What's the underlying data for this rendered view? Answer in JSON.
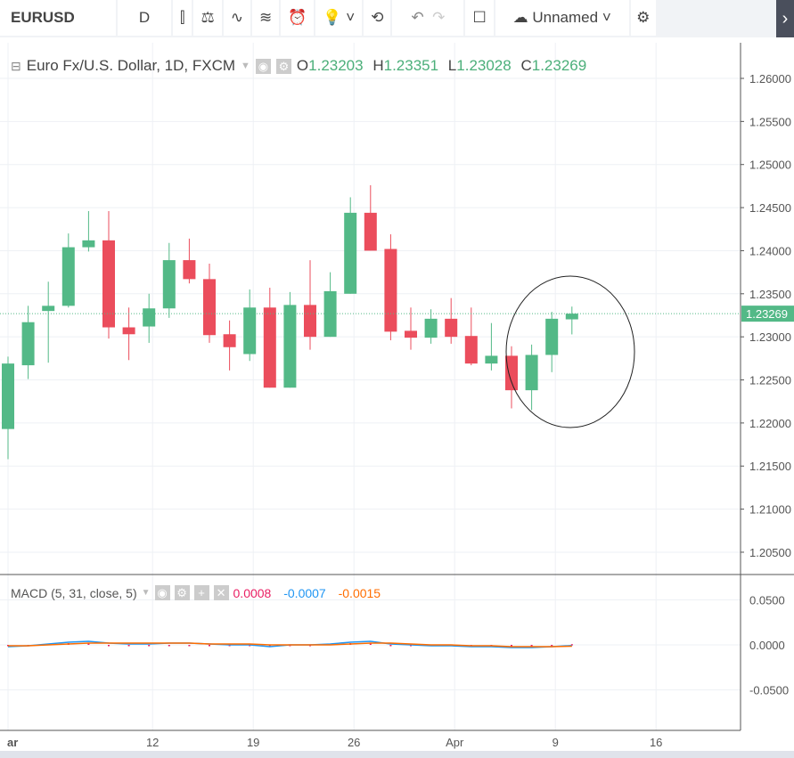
{
  "toolbar": {
    "symbol": "EURUSD",
    "interval": "D",
    "layout_name": "Unnamed",
    "icons": [
      "candles-icon",
      "compare-icon",
      "indicators-icon",
      "templates-icon",
      "alert-icon",
      "ideas-icon",
      "replay-icon",
      "undo-icon",
      "redo-icon",
      "fullscreen-icon",
      "cloud-icon",
      "gear-icon"
    ]
  },
  "legend": {
    "title": "Euro Fx/U.S. Dollar, 1D, FXCM",
    "o_label": "O",
    "o": "1.23203",
    "h_label": "H",
    "h": "1.23351",
    "l_label": "L",
    "l": "1.23028",
    "c_label": "C",
    "c": "1.23269"
  },
  "macd_legend": {
    "title": "MACD (5, 31, close, 5)",
    "hist": "0.0008",
    "macd": "-0.0007",
    "signal": "-0.0015"
  },
  "colors": {
    "up": "#53b987",
    "down": "#eb4d5c",
    "macd": "#2196f3",
    "signal": "#ff6d00",
    "hist": "#e91e63"
  },
  "chart_data": {
    "type": "candlestick",
    "price_axis": {
      "ticks": [
        "1.26000",
        "1.25500",
        "1.25000",
        "1.24500",
        "1.24000",
        "1.23500",
        "1.23000",
        "1.22500",
        "1.22000",
        "1.21500",
        "1.21000",
        "1.20500"
      ],
      "range": [
        1.2045,
        1.2615
      ],
      "last": "1.23269"
    },
    "time_axis": {
      "labels": [
        {
          "t": "ar",
          "i": 0
        },
        {
          "t": "12",
          "i": 7
        },
        {
          "t": "19",
          "i": 12
        },
        {
          "t": "26",
          "i": 17
        },
        {
          "t": "Apr",
          "i": 22
        },
        {
          "t": "9",
          "i": 27
        },
        {
          "t": "16",
          "i": 32
        }
      ]
    },
    "ohlc": [
      [
        1.2193,
        1.2277,
        1.2158,
        1.2269
      ],
      [
        1.2267,
        1.2336,
        1.2251,
        1.2317
      ],
      [
        1.233,
        1.2364,
        1.227,
        1.2336
      ],
      [
        1.2336,
        1.242,
        1.2334,
        1.2404
      ],
      [
        1.2404,
        1.2446,
        1.2399,
        1.2412
      ],
      [
        1.2412,
        1.2446,
        1.2298,
        1.2311
      ],
      [
        1.2311,
        1.2334,
        1.2273,
        1.2303
      ],
      [
        1.2312,
        1.235,
        1.2293,
        1.2333
      ],
      [
        1.2333,
        1.2409,
        1.2322,
        1.2389
      ],
      [
        1.2389,
        1.2414,
        1.2362,
        1.2367
      ],
      [
        1.2367,
        1.2385,
        1.2293,
        1.2302
      ],
      [
        1.2303,
        1.2319,
        1.2261,
        1.2288
      ],
      [
        1.228,
        1.2355,
        1.2272,
        1.2334
      ],
      [
        1.2334,
        1.2357,
        1.2241,
        1.2241
      ],
      [
        1.2241,
        1.2352,
        1.2241,
        1.2337
      ],
      [
        1.2337,
        1.2389,
        1.2285,
        1.23
      ],
      [
        1.23,
        1.2375,
        1.23,
        1.2353
      ],
      [
        1.235,
        1.2462,
        1.235,
        1.2444
      ],
      [
        1.2444,
        1.2476,
        1.24,
        1.24
      ],
      [
        1.2402,
        1.2419,
        1.2296,
        1.2306
      ],
      [
        1.2307,
        1.2334,
        1.2285,
        1.2299
      ],
      [
        1.2299,
        1.2332,
        1.2292,
        1.2321
      ],
      [
        1.2321,
        1.2345,
        1.2292,
        1.23
      ],
      [
        1.2301,
        1.2334,
        1.2267,
        1.2269
      ],
      [
        1.2269,
        1.2316,
        1.2261,
        1.2278
      ],
      [
        1.2278,
        1.2289,
        1.2217,
        1.2238
      ],
      [
        1.2238,
        1.2291,
        1.2215,
        1.2279
      ],
      [
        1.2279,
        1.2329,
        1.2259,
        1.2321
      ],
      [
        1.23203,
        1.23351,
        1.23028,
        1.23269
      ]
    ],
    "macd_axis": {
      "ticks": [
        "0.0500",
        "0.0000",
        "-0.0500"
      ],
      "range": [
        -0.098,
        0.078
      ]
    },
    "macd": [
      -0.002,
      -0.001,
      0.001,
      0.003,
      0.004,
      0.002,
      0.001,
      0.001,
      0.002,
      0.002,
      0.001,
      0.0,
      0.0,
      -0.002,
      0.0,
      0.0,
      0.001,
      0.003,
      0.004,
      0.001,
      0.0,
      -0.001,
      -0.001,
      -0.002,
      -0.002,
      -0.003,
      -0.003,
      -0.002,
      -0.0007
    ],
    "signal": [
      -0.001,
      -0.001,
      0.0,
      0.001,
      0.002,
      0.002,
      0.002,
      0.002,
      0.002,
      0.002,
      0.001,
      0.001,
      0.001,
      0.0,
      0.0,
      0.0,
      0.0,
      0.001,
      0.002,
      0.002,
      0.001,
      0.0,
      0.0,
      -0.001,
      -0.001,
      -0.002,
      -0.002,
      -0.002,
      -0.0015
    ]
  }
}
